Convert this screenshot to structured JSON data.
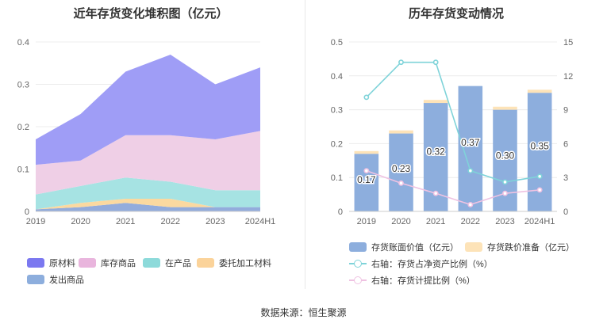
{
  "source": "数据来源：恒生聚源",
  "chart_data": [
    {
      "type": "area",
      "stacked": true,
      "title": "近年存货变化堆积图（亿元）",
      "categories": [
        "2019",
        "2020",
        "2021",
        "2022",
        "2023",
        "2024H1"
      ],
      "ylim": [
        0,
        0.4
      ],
      "yticks": [
        "0",
        "0.1",
        "0.2",
        "0.3",
        "0.4"
      ],
      "series": [
        {
          "name": "发出商品",
          "color": "#93acdc",
          "values": [
            0.005,
            0.01,
            0.02,
            0.01,
            0.01,
            0.01
          ]
        },
        {
          "name": "委托加工材料",
          "color": "#fbd9a0",
          "values": [
            0.0,
            0.01,
            0.01,
            0.02,
            0.0,
            0.0
          ]
        },
        {
          "name": "在产品",
          "color": "#a6e3e3",
          "values": [
            0.035,
            0.04,
            0.05,
            0.04,
            0.04,
            0.04
          ]
        },
        {
          "name": "库存商品",
          "color": "#efcfe6",
          "values": [
            0.07,
            0.06,
            0.1,
            0.11,
            0.12,
            0.14
          ]
        },
        {
          "name": "原材料",
          "color": "#9f9df6",
          "values": [
            0.06,
            0.11,
            0.15,
            0.19,
            0.13,
            0.15
          ]
        }
      ],
      "legend_order": [
        "原材料",
        "库存商品",
        "在产品",
        "委托加工材料",
        "发出商品"
      ],
      "legend_colors": [
        "#7b78f0",
        "#e9b5dd",
        "#8ddada",
        "#fbd39a",
        "#8daedd"
      ]
    },
    {
      "type": "bar+line",
      "title": "历年存货变动情况",
      "categories": [
        "2019",
        "2020",
        "2021",
        "2022",
        "2023",
        "2024H1"
      ],
      "ylim_left": [
        0,
        0.5
      ],
      "yticks_left": [
        "0",
        "0.1",
        "0.2",
        "0.3",
        "0.4",
        "0.5"
      ],
      "ylim_right": [
        0,
        15
      ],
      "yticks_right": [
        "0",
        "3",
        "6",
        "9",
        "12",
        "15"
      ],
      "bars": [
        {
          "name": "存货账面价值（亿元）",
          "color": "#8daedd",
          "values": [
            0.17,
            0.23,
            0.32,
            0.37,
            0.3,
            0.35
          ],
          "labels": [
            "0.17",
            "0.23",
            "0.32",
            "0.37",
            "0.30",
            "0.35"
          ]
        },
        {
          "name": "存货跌价准备（亿元）",
          "color": "#fde3b8",
          "values": [
            0.008,
            0.009,
            0.009,
            0.0,
            0.009,
            0.009
          ]
        }
      ],
      "lines": [
        {
          "name": "右轴：存货占净资产比例（%）",
          "color": "#7fd3d9",
          "values": [
            10.1,
            13.2,
            13.2,
            3.6,
            2.6,
            3.1
          ]
        },
        {
          "name": "右轴：存货计提比例（%）",
          "color": "#efc2e2",
          "values": [
            3.6,
            2.5,
            1.6,
            0.6,
            1.6,
            1.9
          ]
        }
      ]
    }
  ]
}
